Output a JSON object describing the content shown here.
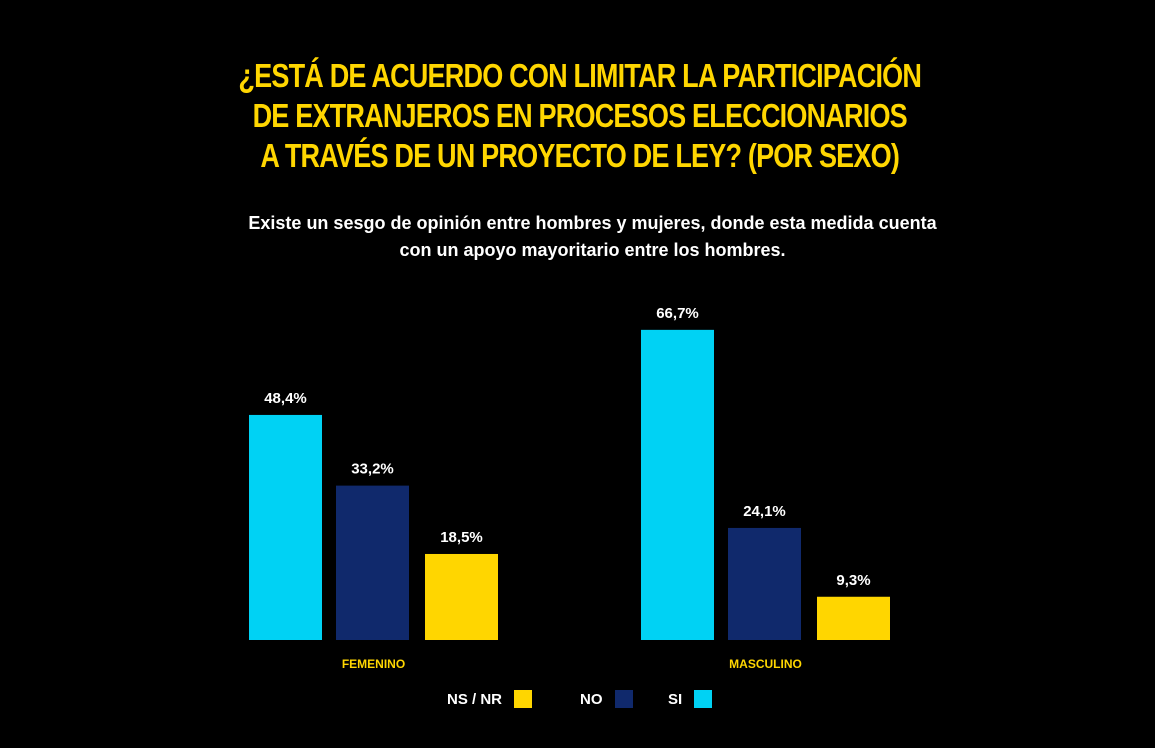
{
  "title_lines": [
    "¿ESTÁ DE ACUERDO CON LIMITAR LA PARTICIPACIÓN",
    "DE EXTRANJEROS EN PROCESOS ELECCIONARIOS",
    "A TRAVÉS DE UN PROYECTO DE LEY? (POR SEXO)"
  ],
  "subtitle_lines": [
    "Existe un sesgo de opinión entre hombres y mujeres, donde esta medida cuenta",
    "con un apoyo mayoritario entre los hombres."
  ],
  "colors": {
    "background": "#000000",
    "title": "#FFD600",
    "si": "#00D2F4",
    "no": "#10296C",
    "nsnr": "#FFD600",
    "label": "#FFFFFF"
  },
  "legend": [
    {
      "label": "NS / NR",
      "color": "#FFD600"
    },
    {
      "label": "NO",
      "color": "#10296C"
    },
    {
      "label": "SI",
      "color": "#00D2F4"
    }
  ],
  "chart_data": {
    "type": "bar",
    "categories": [
      "FEMENINO",
      "MASCULINO"
    ],
    "series": [
      {
        "name": "SI",
        "values": [
          48.4,
          66.7
        ],
        "labels": [
          "48,4%",
          "66,7%"
        ],
        "color": "#00D2F4"
      },
      {
        "name": "NO",
        "values": [
          33.2,
          24.1
        ],
        "labels": [
          "33,2%",
          "24,1%"
        ],
        "color": "#10296C"
      },
      {
        "name": "NS / NR",
        "values": [
          18.5,
          9.3
        ],
        "labels": [
          "18,5%",
          "9,3%"
        ],
        "color": "#FFD600"
      }
    ],
    "legend_position": "bottom",
    "grid": false
  }
}
